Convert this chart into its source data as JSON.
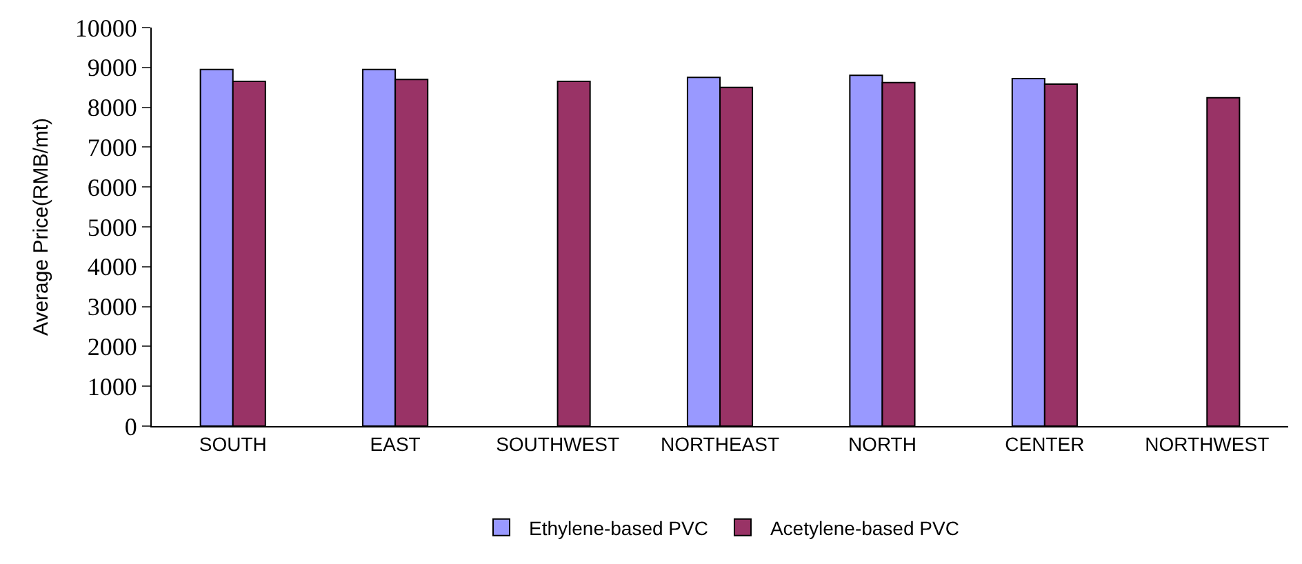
{
  "chart_data": {
    "type": "bar",
    "ylabel": "Average Price(RMB/mt)",
    "categories": [
      "SOUTH",
      "EAST",
      "SOUTHWEST",
      "NORTHEAST",
      "NORTH",
      "CENTER",
      "NORTHWEST"
    ],
    "series": [
      {
        "name": "Ethylene-based PVC",
        "color": "#9999ff",
        "values": [
          8950,
          8950,
          null,
          8750,
          8800,
          8720,
          null
        ]
      },
      {
        "name": "Acetylene-based PVC",
        "color": "#993366",
        "values": [
          8650,
          8700,
          8650,
          8500,
          8620,
          8580,
          8240
        ]
      }
    ],
    "ylim": [
      0,
      10000
    ],
    "yticks": [
      0,
      1000,
      2000,
      3000,
      4000,
      5000,
      6000,
      7000,
      8000,
      9000,
      10000
    ],
    "legend": "bottom"
  }
}
